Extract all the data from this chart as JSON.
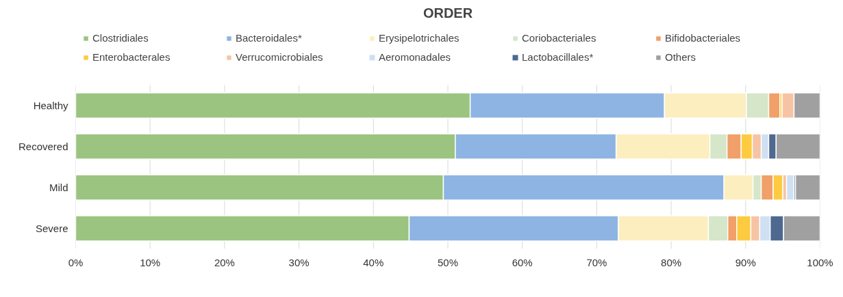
{
  "chart_data": {
    "type": "bar",
    "title": "ORDER",
    "orientation": "horizontal",
    "stacked": true,
    "categories": [
      "Healthy",
      "Recovered",
      "Mild",
      "Severe"
    ],
    "series": [
      {
        "name": "Clostridiales",
        "color": "#9ac47f",
        "values": [
          53.0,
          51.0,
          49.4,
          44.8
        ]
      },
      {
        "name": "Bacteroidales*",
        "color": "#8db4e2",
        "values": [
          26.1,
          21.6,
          37.7,
          28.1
        ]
      },
      {
        "name": "Erysipelotrichales",
        "color": "#fdeec0",
        "values": [
          11.0,
          12.6,
          3.9,
          12.1
        ]
      },
      {
        "name": "Coriobacteriales",
        "color": "#d5e6c9",
        "values": [
          3.0,
          2.3,
          1.1,
          2.6
        ]
      },
      {
        "name": "Bifidobacteriales",
        "color": "#f0a068",
        "values": [
          1.5,
          1.9,
          1.6,
          1.2
        ]
      },
      {
        "name": "Enterobacterales",
        "color": "#fdcb3f",
        "values": [
          0.3,
          1.5,
          1.3,
          1.9
        ]
      },
      {
        "name": "Verrucomicrobiales",
        "color": "#f6c4a4",
        "values": [
          1.6,
          1.2,
          0.5,
          1.2
        ]
      },
      {
        "name": "Aeromonadales",
        "color": "#cfe0f3",
        "values": [
          0,
          1.0,
          1.0,
          1.4
        ]
      },
      {
        "name": "Lactobacillales*",
        "color": "#4e6890",
        "values": [
          0,
          1.0,
          0.2,
          1.8
        ]
      },
      {
        "name": "Others",
        "color": "#a0a0a0",
        "values": [
          3.5,
          5.9,
          3.3,
          4.9
        ]
      }
    ],
    "xlim": [
      0,
      100
    ],
    "xticks": [
      {
        "value": 0,
        "label": "0%"
      },
      {
        "value": 10,
        "label": "10%"
      },
      {
        "value": 20,
        "label": "20%"
      },
      {
        "value": 30,
        "label": "30%"
      },
      {
        "value": 40,
        "label": "40%"
      },
      {
        "value": 50,
        "label": "50%"
      },
      {
        "value": 60,
        "label": "60%"
      },
      {
        "value": 70,
        "label": "70%"
      },
      {
        "value": 80,
        "label": "80%"
      },
      {
        "value": 90,
        "label": "90%"
      },
      {
        "value": 100,
        "label": "100%"
      }
    ],
    "grid": "x",
    "legend": "top"
  }
}
